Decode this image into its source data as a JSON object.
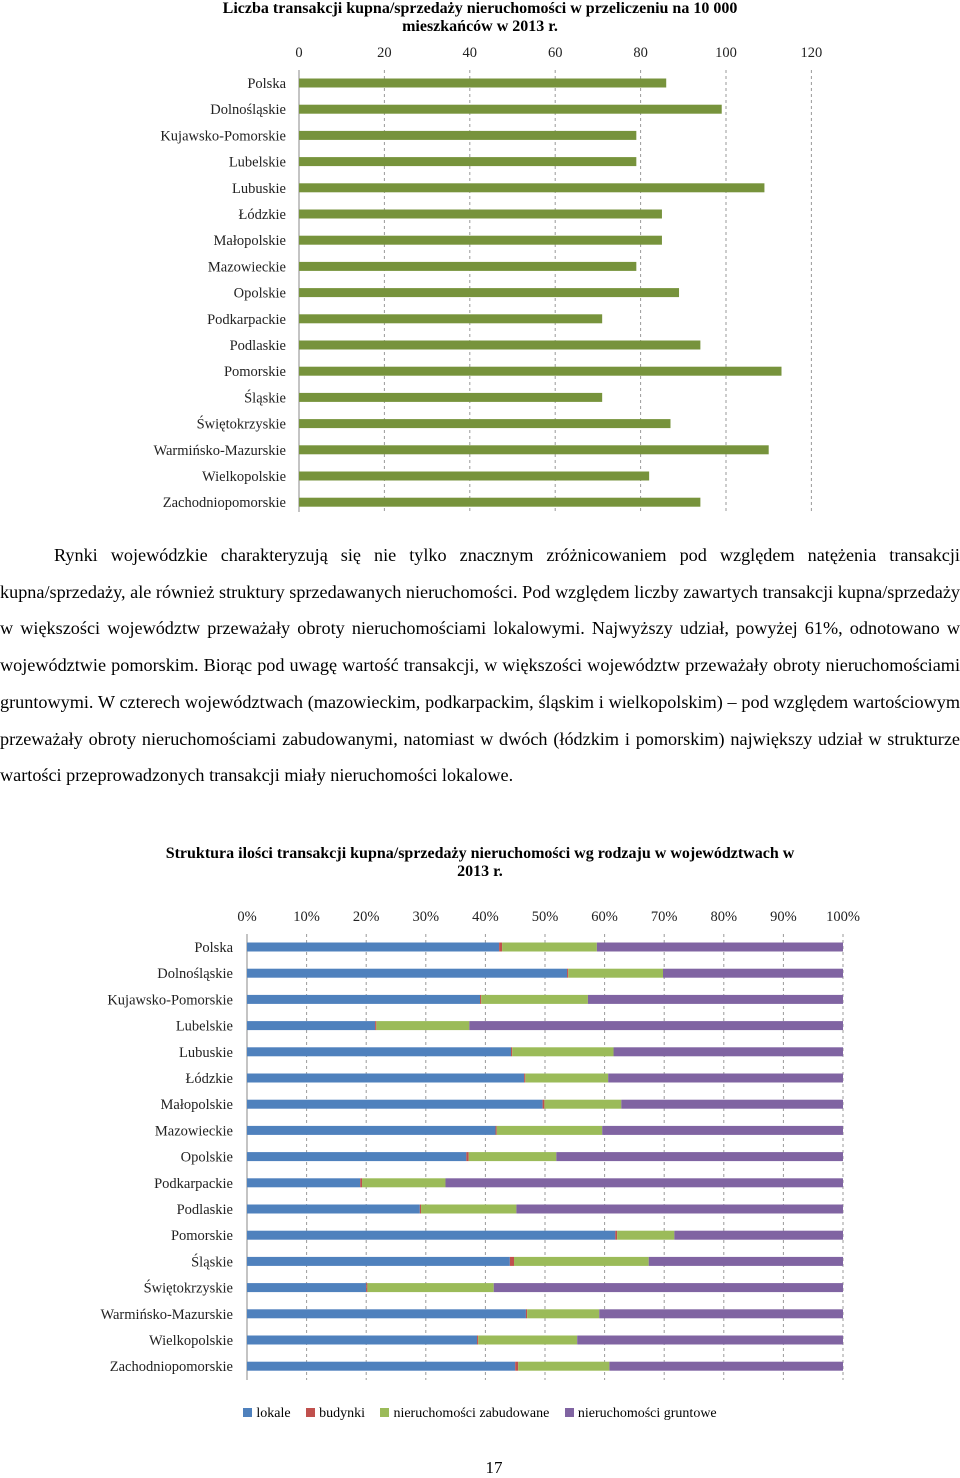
{
  "page": {
    "number": "17",
    "paragraph": "Rynki wojewódzkie charakteryzują się nie tylko znacznym zróżnicowaniem pod względem natężenia transakcji kupna/sprzedaży, ale również struktury sprzedawanych nieruchomości. Pod względem liczby zawartych transakcji kupna/sprzedaży w większości województw przeważały obroty nieruchomościami lokalowymi. Najwyższy udział, powyżej 61%, odnotowano w województwie pomorskim. Biorąc pod uwagę wartość transakcji, w większości województw przeważały obroty nieruchomościami gruntowymi. W czterech województwach (mazowieckim, podkarpackim, śląskim i wielkopolskim) – pod względem wartościowym przeważały obroty nieruchomościami zabudowanymi, natomiast w dwóch (łódzkim i pomorskim) największy udział w strukturze wartości przeprowadzonych transakcji miały nieruchomości lokalowe."
  },
  "chart_data": [
    {
      "type": "bar",
      "orientation": "horizontal",
      "title": "Liczba transakcji kupna/sprzedaży nieruchomości w przeliczeniu na 10 000 mieszkańców w 2013 r.",
      "xlim": [
        0,
        120
      ],
      "xticks": [
        "0",
        "20",
        "40",
        "60",
        "80",
        "100",
        "120"
      ],
      "grid": true,
      "color": "#77933c",
      "categories": [
        "Polska",
        "Dolnośląskie",
        "Kujawsko-Pomorskie",
        "Lubelskie",
        "Lubuskie",
        "Łódzkie",
        "Małopolskie",
        "Mazowieckie",
        "Opolskie",
        "Podkarpackie",
        "Podlaskie",
        "Pomorskie",
        "Śląskie",
        "Świętokrzyskie",
        "Warmińsko-Mazurskie",
        "Wielkopolskie",
        "Zachodniopomorskie"
      ],
      "values": [
        86,
        99,
        79,
        79,
        109,
        85,
        85,
        79,
        89,
        71,
        94,
        113,
        71,
        87,
        110,
        82,
        94
      ]
    },
    {
      "type": "bar",
      "orientation": "horizontal",
      "stacked": true,
      "title": "Struktura ilości transakcji kupna/sprzedaży nieruchomości wg rodzaju w województwach w 2013 r.",
      "xlim": [
        0,
        100
      ],
      "xticks": [
        "0%",
        "10%",
        "20%",
        "30%",
        "40%",
        "50%",
        "60%",
        "70%",
        "80%",
        "90%",
        "100%"
      ],
      "legend_position": "bottom",
      "categories": [
        "Polska",
        "Dolnośląskie",
        "Kujawsko-Pomorskie",
        "Lubelskie",
        "Lubuskie",
        "Łódzkie",
        "Małopolskie",
        "Mazowieckie",
        "Opolskie",
        "Podkarpackie",
        "Podlaskie",
        "Pomorskie",
        "Śląskie",
        "Świętokrzyskie",
        "Warmińsko-Mazurskie",
        "Wielkopolskie",
        "Zachodniopomorskie"
      ],
      "series": [
        {
          "name": "lokale",
          "color": "#4f81bd",
          "values": [
            42.3,
            53.7,
            39.1,
            21.5,
            44.3,
            46.5,
            49.6,
            41.7,
            36.8,
            19.0,
            29.0,
            61.8,
            44.1,
            20.0,
            46.8,
            38.6,
            45.0
          ]
        },
        {
          "name": "budynki",
          "color": "#c0504d",
          "values": [
            0.5,
            0.2,
            0.2,
            0.2,
            0.2,
            0.2,
            0.3,
            0.2,
            0.4,
            0.3,
            0.2,
            0.3,
            0.7,
            0.2,
            0.2,
            0.2,
            0.5
          ]
        },
        {
          "name": "nieruchomości zabudowane",
          "color": "#9bbb59",
          "values": [
            15.9,
            15.9,
            17.9,
            15.6,
            17.0,
            13.9,
            12.9,
            17.7,
            14.7,
            14.0,
            16.0,
            9.6,
            22.6,
            21.2,
            12.1,
            16.6,
            15.3
          ]
        },
        {
          "name": "nieruchomości gruntowe",
          "color": "#8064a2",
          "values": [
            41.3,
            30.2,
            42.8,
            62.7,
            38.5,
            39.4,
            37.2,
            40.4,
            48.1,
            66.7,
            54.8,
            28.3,
            32.6,
            58.6,
            40.9,
            44.6,
            39.2
          ]
        }
      ]
    }
  ]
}
